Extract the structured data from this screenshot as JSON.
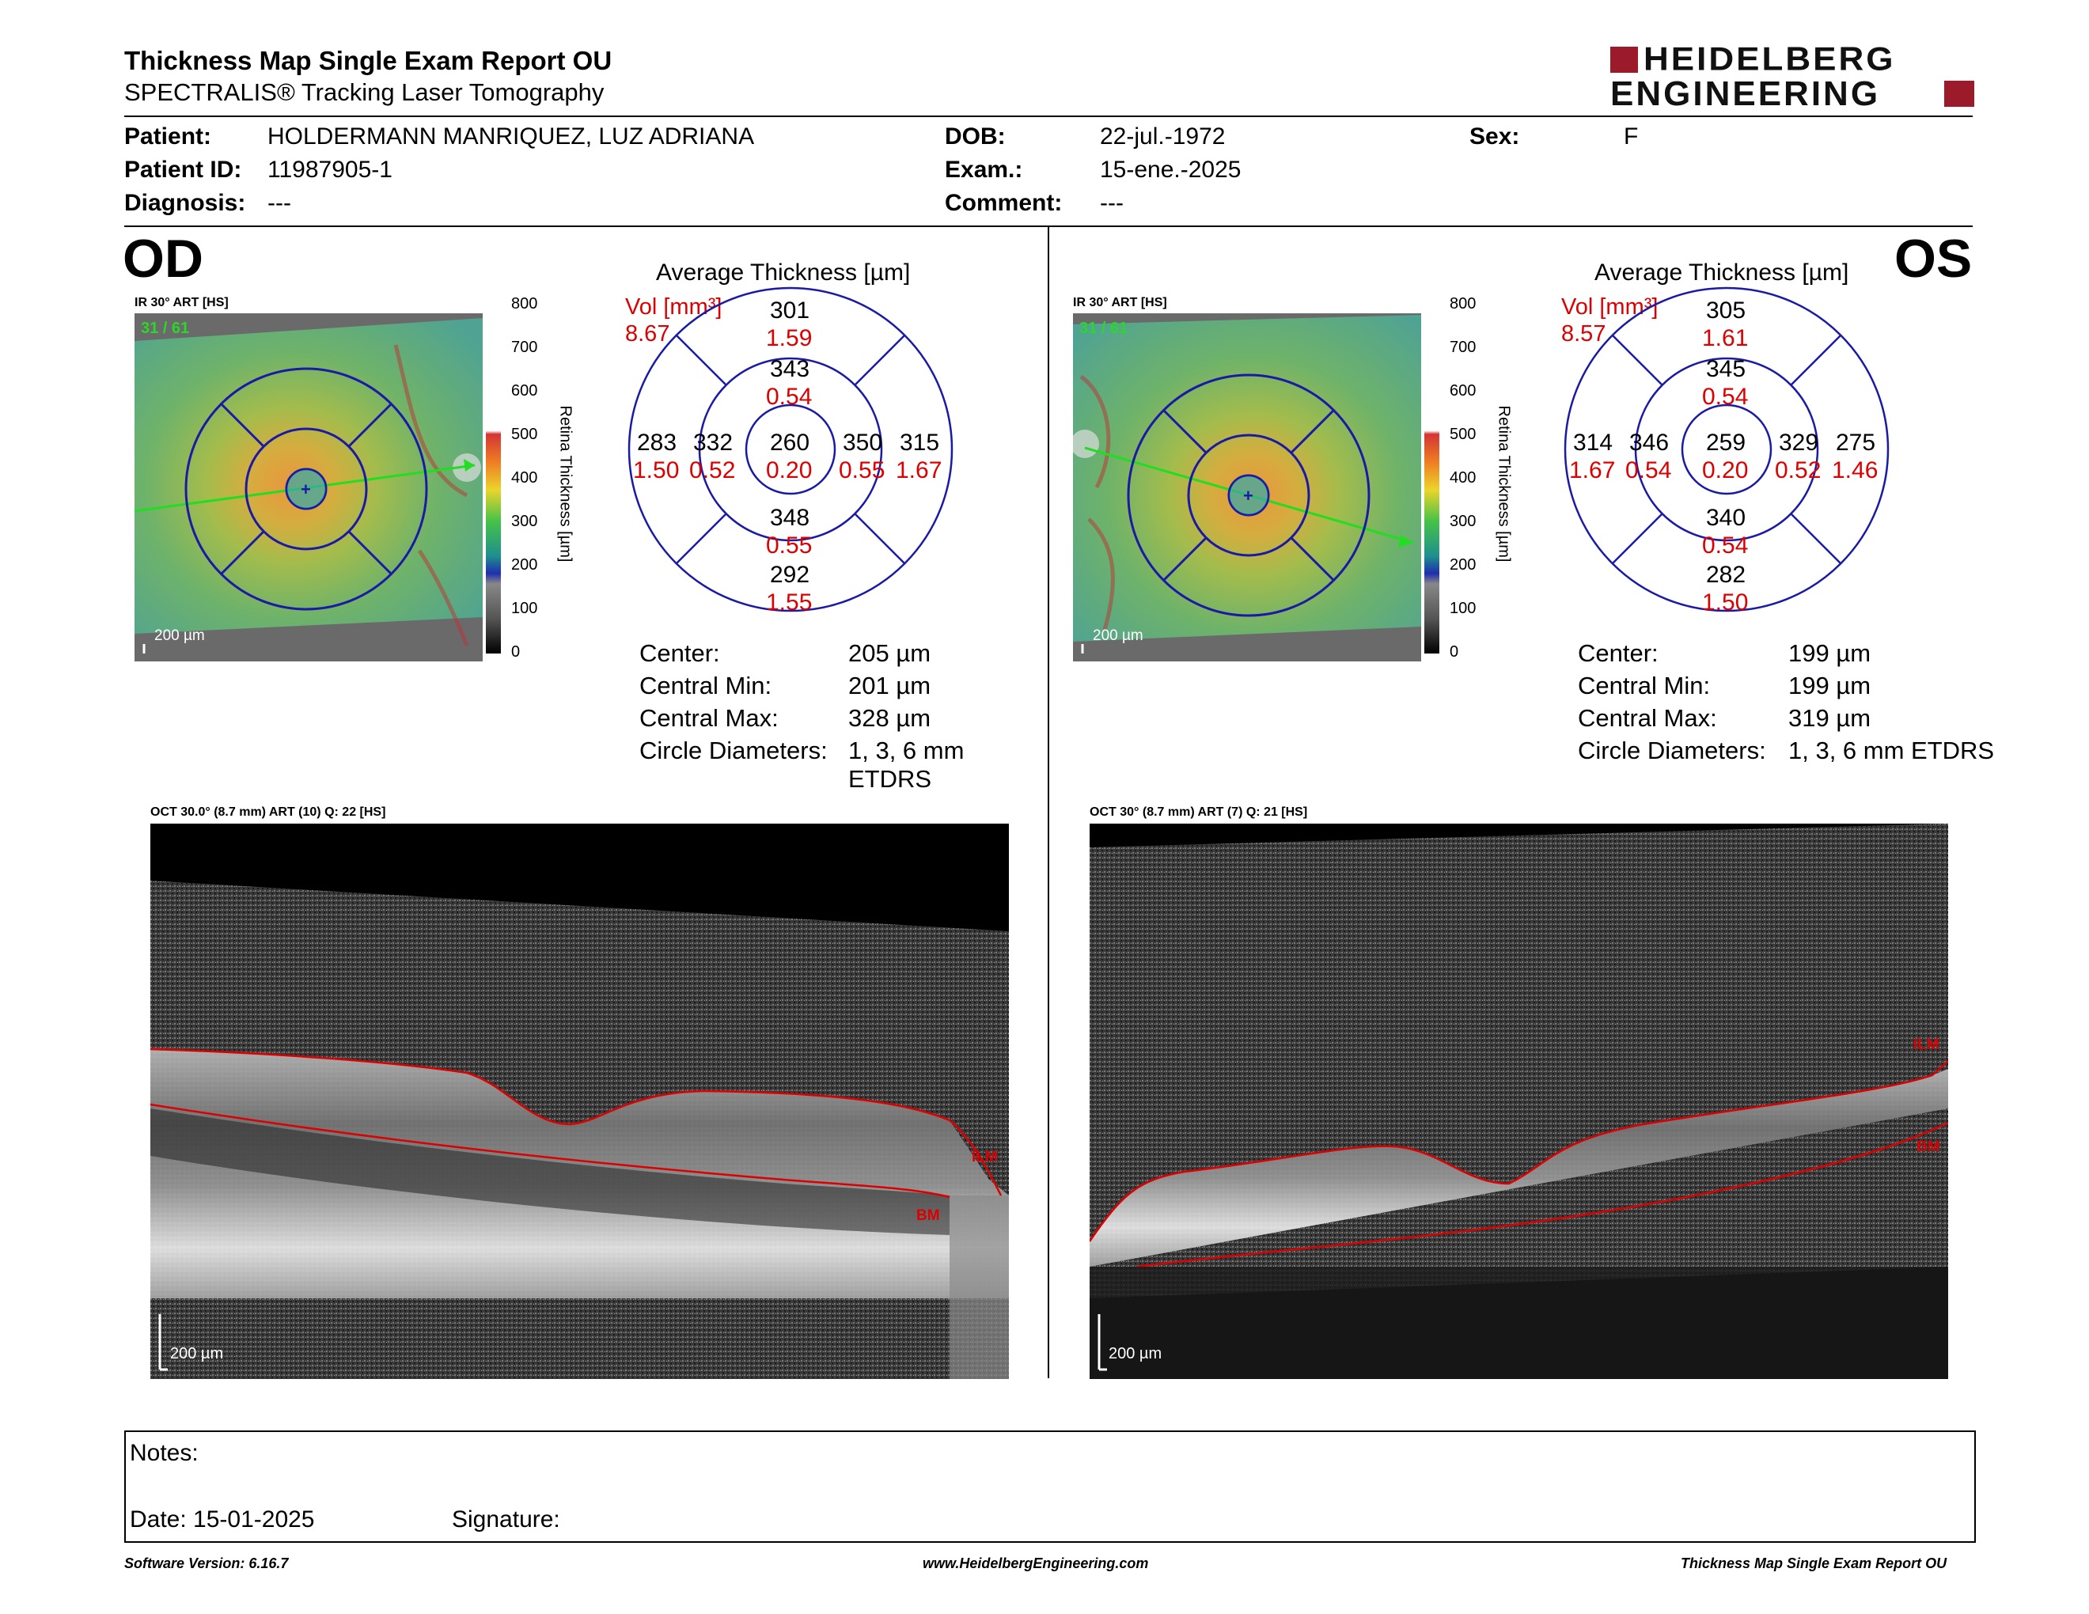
{
  "header": {
    "title": "Thickness Map Single Exam Report OU",
    "subtitle": "SPECTRALIS® Tracking Laser Tomography",
    "logo_line1": "HEIDELBERG",
    "logo_line2": "ENGINEERING",
    "brand_color": "#9b1b2a"
  },
  "patient": {
    "patient_label": "Patient:",
    "patient_value": "HOLDERMANN MANRIQUEZ, LUZ ADRIANA",
    "id_label": "Patient ID:",
    "id_value": "11987905-1",
    "diagnosis_label": "Diagnosis:",
    "diagnosis_value": "---",
    "dob_label": "DOB:",
    "dob_value": "22-jul.-1972",
    "exam_label": "Exam.:",
    "exam_value": "15-ene.-2025",
    "comment_label": "Comment:",
    "comment_value": "---",
    "sex_label": "Sex:",
    "sex_value": "F"
  },
  "od": {
    "eye": "OD",
    "ir_label": "IR 30° ART [HS]",
    "frame": "31 / 61",
    "scale_bar": "200 µm",
    "colorbar_ticks": [
      "800",
      "700",
      "600",
      "500",
      "400",
      "300",
      "200",
      "100",
      "0"
    ],
    "colorbar_title": "Retina Thickness [µm]",
    "avg_title": "Average Thickness [µm]",
    "vol_label": "Vol [mm³]",
    "vol_total": "8.67",
    "sectors": {
      "outer_sup": [
        "301",
        "1.59"
      ],
      "inner_sup": [
        "343",
        "0.54"
      ],
      "outer_nasal_left": [
        "283",
        "1.50"
      ],
      "inner_left": [
        "332",
        "0.52"
      ],
      "center": [
        "260",
        "0.20"
      ],
      "inner_right": [
        "350",
        "0.55"
      ],
      "outer_right": [
        "315",
        "1.67"
      ],
      "inner_inf": [
        "348",
        "0.55"
      ],
      "outer_inf": [
        "292",
        "1.55"
      ]
    },
    "stats": [
      {
        "label": "Center:",
        "value": "205 µm"
      },
      {
        "label": "Central Min:",
        "value": "201 µm"
      },
      {
        "label": "Central Max:",
        "value": "328 µm"
      },
      {
        "label": "Circle Diameters:",
        "value": "1, 3, 6 mm ETDRS"
      }
    ],
    "oct_label": "OCT 30.0° (8.7 mm) ART (10) Q: 22 [HS]",
    "ilm": "ILM",
    "bm": "BM",
    "oct_scale": "200 µm"
  },
  "os": {
    "eye": "OS",
    "ir_label": "IR 30° ART [HS]",
    "frame": "31 / 61",
    "scale_bar": "200 µm",
    "colorbar_ticks": [
      "800",
      "700",
      "600",
      "500",
      "400",
      "300",
      "200",
      "100",
      "0"
    ],
    "colorbar_title": "Retina Thickness [µm]",
    "avg_title": "Average Thickness [µm]",
    "vol_label": "Vol [mm³]",
    "vol_total": "8.57",
    "sectors": {
      "outer_sup": [
        "305",
        "1.61"
      ],
      "inner_sup": [
        "345",
        "0.54"
      ],
      "outer_nasal_left": [
        "314",
        "1.67"
      ],
      "inner_left": [
        "346",
        "0.54"
      ],
      "center": [
        "259",
        "0.20"
      ],
      "inner_right": [
        "329",
        "0.52"
      ],
      "outer_right": [
        "275",
        "1.46"
      ],
      "inner_inf": [
        "340",
        "0.54"
      ],
      "outer_inf": [
        "282",
        "1.50"
      ]
    },
    "stats": [
      {
        "label": "Center:",
        "value": "199 µm"
      },
      {
        "label": "Central Min:",
        "value": "199 µm"
      },
      {
        "label": "Central Max:",
        "value": "319 µm"
      },
      {
        "label": "Circle Diameters:",
        "value": "1, 3, 6 mm ETDRS"
      }
    ],
    "oct_label": "OCT 30° (8.7 mm) ART (7) Q: 21 [HS]",
    "ilm": "ILM",
    "bm": "BM",
    "oct_scale": "200 µm"
  },
  "notes": {
    "notes_label": "Notes:",
    "date_label": "Date: 15-01-2025",
    "signature_label": "Signature:"
  },
  "footer": {
    "software": "Software Version: 6.16.7",
    "website": "www.HeidelbergEngineering.com",
    "report": "Thickness Map Single Exam Report OU"
  }
}
